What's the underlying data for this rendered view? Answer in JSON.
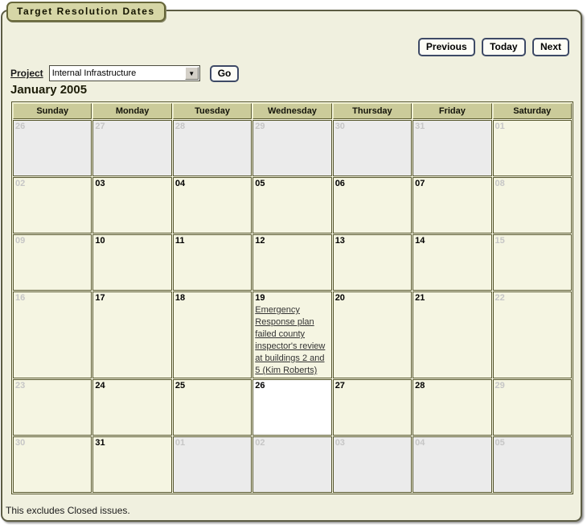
{
  "tab": {
    "title": "Target Resolution Dates"
  },
  "toolbar": {
    "previous_label": "Previous",
    "today_label": "Today",
    "next_label": "Next"
  },
  "filter": {
    "project_label": "Project",
    "project_value": "Internal Infrastructure",
    "go_label": "Go"
  },
  "icons": {
    "dropdown_arrow": "▼"
  },
  "calendar": {
    "title": "January 2005",
    "day_headers": [
      "Sunday",
      "Monday",
      "Tuesday",
      "Wednesday",
      "Thursday",
      "Friday",
      "Saturday"
    ],
    "weeks": [
      [
        {
          "day": "26",
          "type": "outside"
        },
        {
          "day": "27",
          "type": "outside"
        },
        {
          "day": "28",
          "type": "outside"
        },
        {
          "day": "29",
          "type": "outside"
        },
        {
          "day": "30",
          "type": "outside"
        },
        {
          "day": "31",
          "type": "outside"
        },
        {
          "day": "01",
          "type": "weekend"
        }
      ],
      [
        {
          "day": "02",
          "type": "weekend"
        },
        {
          "day": "03",
          "type": "weekday"
        },
        {
          "day": "04",
          "type": "weekday"
        },
        {
          "day": "05",
          "type": "weekday"
        },
        {
          "day": "06",
          "type": "weekday"
        },
        {
          "day": "07",
          "type": "weekday"
        },
        {
          "day": "08",
          "type": "weekend"
        }
      ],
      [
        {
          "day": "09",
          "type": "weekend"
        },
        {
          "day": "10",
          "type": "weekday"
        },
        {
          "day": "11",
          "type": "weekday"
        },
        {
          "day": "12",
          "type": "weekday"
        },
        {
          "day": "13",
          "type": "weekday"
        },
        {
          "day": "14",
          "type": "weekday"
        },
        {
          "day": "15",
          "type": "weekend"
        }
      ],
      [
        {
          "day": "16",
          "type": "weekend"
        },
        {
          "day": "17",
          "type": "weekday"
        },
        {
          "day": "18",
          "type": "weekday"
        },
        {
          "day": "19",
          "type": "weekday",
          "event": "Emergency Response plan failed county inspector's review at buildings 2 and 5 (Kim Roberts)"
        },
        {
          "day": "20",
          "type": "weekday"
        },
        {
          "day": "21",
          "type": "weekday"
        },
        {
          "day": "22",
          "type": "weekend"
        }
      ],
      [
        {
          "day": "23",
          "type": "weekend"
        },
        {
          "day": "24",
          "type": "weekday"
        },
        {
          "day": "25",
          "type": "weekday"
        },
        {
          "day": "26",
          "type": "today"
        },
        {
          "day": "27",
          "type": "weekday"
        },
        {
          "day": "28",
          "type": "weekday"
        },
        {
          "day": "29",
          "type": "weekend"
        }
      ],
      [
        {
          "day": "30",
          "type": "weekend"
        },
        {
          "day": "31",
          "type": "weekday"
        },
        {
          "day": "01",
          "type": "outside"
        },
        {
          "day": "02",
          "type": "outside"
        },
        {
          "day": "03",
          "type": "outside"
        },
        {
          "day": "04",
          "type": "outside"
        },
        {
          "day": "05",
          "type": "outside"
        }
      ]
    ]
  },
  "footer": {
    "note": "This excludes Closed issues."
  },
  "colors": {
    "panel_bg": "#f0f0df",
    "tab_bg": "#d6d6a6",
    "header_cell_bg": "#cbcb9a",
    "day_cell_bg": "#f5f5e2",
    "outside_month_bg": "#ebebeb",
    "today_bg": "#ffffff",
    "grid_line": "#54542b",
    "muted_day_number": "#c6c6c6",
    "button_border": "#3e4a66"
  }
}
